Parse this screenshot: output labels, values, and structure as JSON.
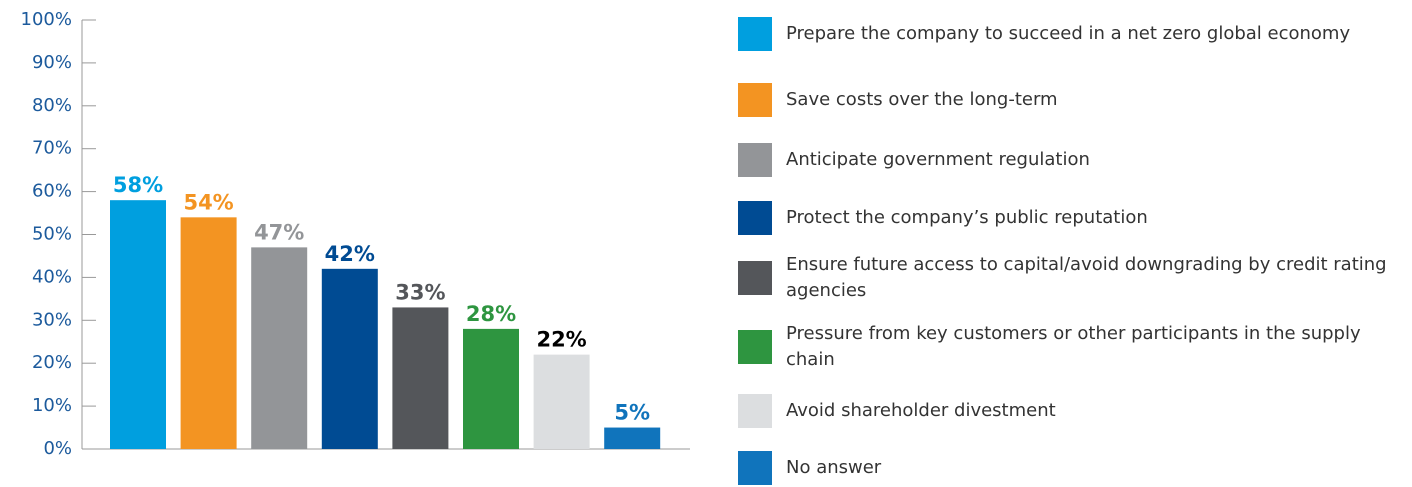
{
  "chart_data": {
    "type": "bar",
    "categories": [
      "Prepare the company to succeed in a net zero global economy",
      "Save costs over the long-term",
      "Anticipate government regulation",
      "Protect the company’s public reputation",
      "Ensure future access to capital/avoid downgrading by credit rating agencies",
      "Pressure from key customers or other participants in the supply chain",
      "Avoid shareholder divestment",
      "No answer"
    ],
    "values": [
      58,
      54,
      47,
      42,
      33,
      28,
      22,
      5
    ],
    "value_labels": [
      "58%",
      "54%",
      "47%",
      "42%",
      "33%",
      "28%",
      "22%",
      "5%"
    ],
    "colors": [
      "#009fdf",
      "#f39422",
      "#939598",
      "#004b93",
      "#54565a",
      "#2e9540",
      "#dcdee0",
      "#1074bc"
    ],
    "value_label_colors": [
      "#009fdf",
      "#f39422",
      "#939598",
      "#004b93",
      "#54565a",
      "#2e9540",
      "#000000",
      "#1074bc"
    ],
    "ylim": [
      0,
      100
    ],
    "yticks": [
      {
        "value": 0,
        "label": "0%"
      },
      {
        "value": 10,
        "label": "10%"
      },
      {
        "value": 20,
        "label": "20%"
      },
      {
        "value": 30,
        "label": "30%"
      },
      {
        "value": 40,
        "label": "40%"
      },
      {
        "value": 50,
        "label": "50%"
      },
      {
        "value": 60,
        "label": "60%"
      },
      {
        "value": 70,
        "label": "70%"
      },
      {
        "value": 80,
        "label": "80%"
      },
      {
        "value": 90,
        "label": "90%"
      },
      {
        "value": 100,
        "label": "100%"
      }
    ],
    "legend": "right"
  }
}
